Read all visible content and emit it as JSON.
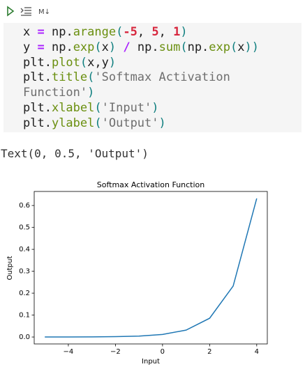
{
  "toolbar": {
    "markdown_label": "M↓"
  },
  "code": {
    "lines": [
      [
        {
          "text": "x ",
          "color": "#212121"
        },
        {
          "text": "=",
          "color": "#aa22ff",
          "bold": true
        },
        {
          "text": " np.",
          "color": "#212121"
        },
        {
          "text": "arange",
          "color": "#6a8f0f"
        },
        {
          "text": "(",
          "color": "#0f7f7f"
        },
        {
          "text": "-5",
          "color": "#d7263d",
          "bold": true
        },
        {
          "text": ", ",
          "color": "#212121"
        },
        {
          "text": "5",
          "color": "#d7263d",
          "bold": true
        },
        {
          "text": ", ",
          "color": "#212121"
        },
        {
          "text": "1",
          "color": "#d7263d",
          "bold": true
        },
        {
          "text": ")",
          "color": "#0f7f7f"
        }
      ],
      [
        {
          "text": "y ",
          "color": "#212121"
        },
        {
          "text": "=",
          "color": "#aa22ff",
          "bold": true
        },
        {
          "text": " np.",
          "color": "#212121"
        },
        {
          "text": "exp",
          "color": "#6a8f0f"
        },
        {
          "text": "(",
          "color": "#0f7f7f"
        },
        {
          "text": "x",
          "color": "#212121"
        },
        {
          "text": ")",
          "color": "#0f7f7f"
        },
        {
          "text": " ",
          "color": "#212121"
        },
        {
          "text": "/",
          "color": "#aa22ff",
          "bold": true
        },
        {
          "text": " np.",
          "color": "#212121"
        },
        {
          "text": "sum",
          "color": "#6a8f0f"
        },
        {
          "text": "(",
          "color": "#0f7f7f"
        },
        {
          "text": "np.",
          "color": "#212121"
        },
        {
          "text": "exp",
          "color": "#6a8f0f"
        },
        {
          "text": "(",
          "color": "#0f7f7f"
        },
        {
          "text": "x",
          "color": "#212121"
        },
        {
          "text": "))",
          "color": "#0f7f7f"
        }
      ],
      [
        {
          "text": "plt.",
          "color": "#212121"
        },
        {
          "text": "plot",
          "color": "#6a8f0f"
        },
        {
          "text": "(",
          "color": "#0f7f7f"
        },
        {
          "text": "x,y",
          "color": "#212121"
        },
        {
          "text": ")",
          "color": "#0f7f7f"
        }
      ],
      [
        {
          "text": "plt.",
          "color": "#212121"
        },
        {
          "text": "title",
          "color": "#6a8f0f"
        },
        {
          "text": "(",
          "color": "#0f7f7f"
        },
        {
          "text": "'Softmax Activation",
          "color": "#6e6e6e"
        }
      ],
      [
        {
          "text": "Function'",
          "color": "#6e6e6e"
        },
        {
          "text": ")",
          "color": "#0f7f7f"
        }
      ],
      [
        {
          "text": "plt.",
          "color": "#212121"
        },
        {
          "text": "xlabel",
          "color": "#6a8f0f"
        },
        {
          "text": "(",
          "color": "#0f7f7f"
        },
        {
          "text": "'Input'",
          "color": "#6e6e6e"
        },
        {
          "text": ")",
          "color": "#0f7f7f"
        }
      ],
      [
        {
          "text": "plt.",
          "color": "#212121"
        },
        {
          "text": "ylabel",
          "color": "#6a8f0f"
        },
        {
          "text": "(",
          "color": "#0f7f7f"
        },
        {
          "text": "'Output'",
          "color": "#6e6e6e"
        },
        {
          "text": ")",
          "color": "#0f7f7f"
        }
      ]
    ]
  },
  "output": {
    "text": "Text(0, 0.5, 'Output')"
  },
  "chart_data": {
    "type": "line",
    "title": "Softmax Activation Function",
    "xlabel": "Input",
    "ylabel": "Output",
    "x": [
      -5,
      -4,
      -3,
      -2,
      -1,
      0,
      1,
      2,
      3,
      4
    ],
    "series": [
      {
        "color": "#1f77b4",
        "values": [
          7.8e-05,
          0.000212,
          0.000576,
          0.00157,
          0.00426,
          0.0116,
          0.0315,
          0.0856,
          0.2326,
          0.632
        ]
      }
    ],
    "xlim": [
      -5.45,
      4.45
    ],
    "xticks": [
      {
        "value": -4,
        "label": "−4"
      },
      {
        "value": -2,
        "label": "−2"
      },
      0,
      2,
      4
    ],
    "ylim": [
      -0.0316,
      0.664
    ],
    "yticks": [
      {
        "value": 0,
        "label": "0.0"
      },
      0.1,
      0.2,
      0.3,
      0.4,
      0.5,
      0.6
    ],
    "grid": false
  }
}
